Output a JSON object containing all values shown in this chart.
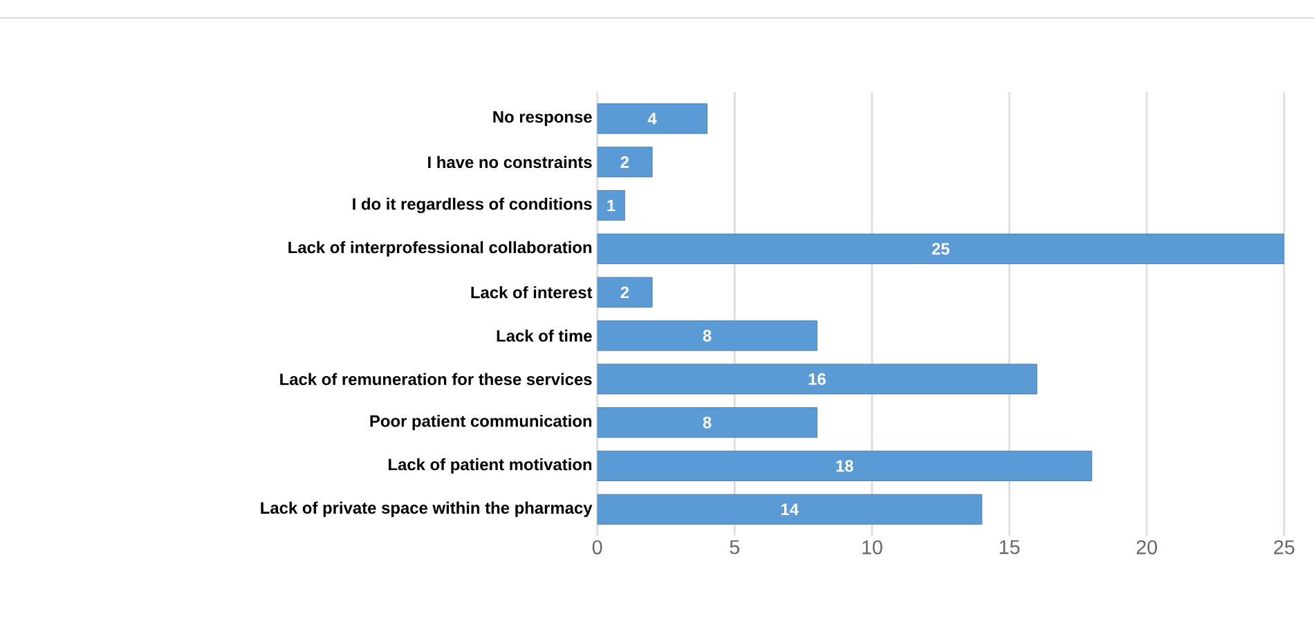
{
  "chart_data": {
    "type": "bar",
    "orientation": "horizontal",
    "categories": [
      "No response",
      "I have no constraints",
      "I do it regardless of conditions",
      "Lack of interprofessional collaboration",
      "Lack of interest",
      "Lack of time",
      "Lack of remuneration for these services",
      "Poor patient communication",
      "Lack of patient motivation",
      "Lack of private space within the pharmacy"
    ],
    "values": [
      4,
      2,
      1,
      25,
      2,
      8,
      16,
      8,
      18,
      14
    ],
    "color": "#5b9bd5",
    "xlim": [
      0,
      25
    ],
    "xticks": [
      0,
      5,
      10,
      15,
      20,
      25
    ],
    "grid": "x",
    "data_labels": true
  }
}
